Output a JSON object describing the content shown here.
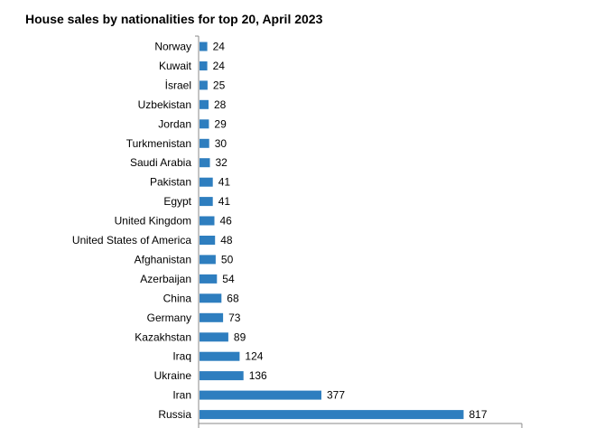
{
  "chart_data": {
    "type": "bar",
    "orientation": "horizontal",
    "title": "House sales by nationalities for top 20, April 2023",
    "categories": [
      "Norway",
      "Kuwait",
      "İsrael",
      "Uzbekistan",
      "Jordan",
      "Turkmenistan",
      "Saudi Arabia",
      "Pakistan",
      "Egypt",
      "United Kingdom",
      "United States of America",
      "Afghanistan",
      "Azerbaijan",
      "China",
      "Germany",
      "Kazakhstan",
      "Iraq",
      "Ukraine",
      "Iran",
      "Russia"
    ],
    "values": [
      24,
      24,
      25,
      28,
      29,
      30,
      32,
      41,
      41,
      46,
      48,
      50,
      54,
      68,
      73,
      89,
      124,
      136,
      377,
      817
    ],
    "xlim": [
      0,
      1000
    ],
    "bar_color": "#2e7ebf",
    "data_labels": true,
    "grid": false
  }
}
